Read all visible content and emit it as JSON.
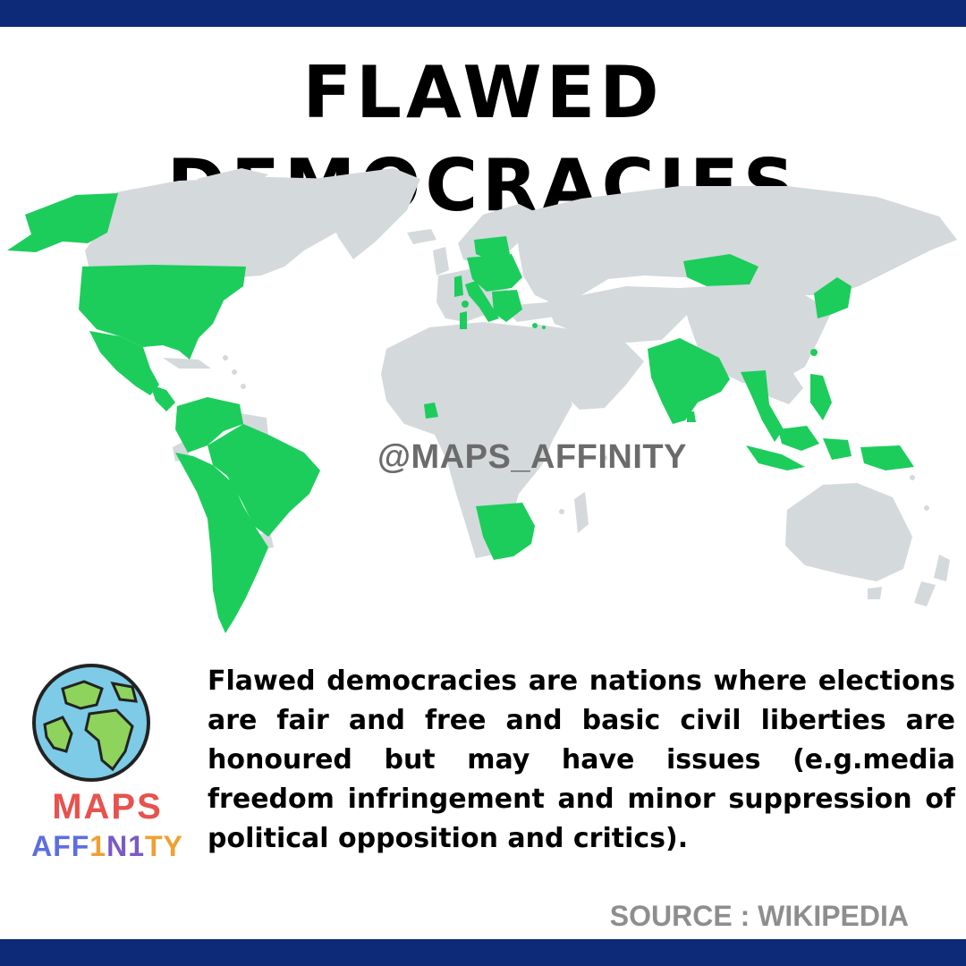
{
  "title": "FLAWED DEMOCRACIES",
  "watermark": "@MAPS_AFFINITY",
  "description": "Flawed democracies are nations where elections are fair and free and basic civil liberties are honoured but may have issues (e.g.media freedom infringement and minor suppression of political opposition and critics).",
  "source": "SOURCE : WIKIPEDIA",
  "brand": {
    "line1": "MAPS",
    "line2": "AFF1N1TY"
  },
  "colors": {
    "header_bar": "#0d2a78",
    "flawed_democracy": "#1ccd5b",
    "other_country": "#d4d9dc",
    "ocean": "#ffffff"
  },
  "map": {
    "highlighted_regions": [
      "Alaska",
      "United States",
      "Mexico",
      "Central America",
      "Colombia",
      "Venezuela",
      "Peru",
      "Brazil",
      "Bolivia",
      "Argentina",
      "Chile",
      "Paraguay",
      "Poland",
      "Baltic states",
      "Central Europe",
      "Italy",
      "Portugal",
      "Greece",
      "Balkans",
      "Ghana",
      "South Africa",
      "Namibia",
      "Botswana",
      "Lesotho",
      "India",
      "Sri Lanka",
      "Mongolia",
      "Japan",
      "Thailand",
      "Malaysia",
      "Philippines",
      "Indonesia",
      "Timor-Leste",
      "Papua New Guinea"
    ]
  }
}
